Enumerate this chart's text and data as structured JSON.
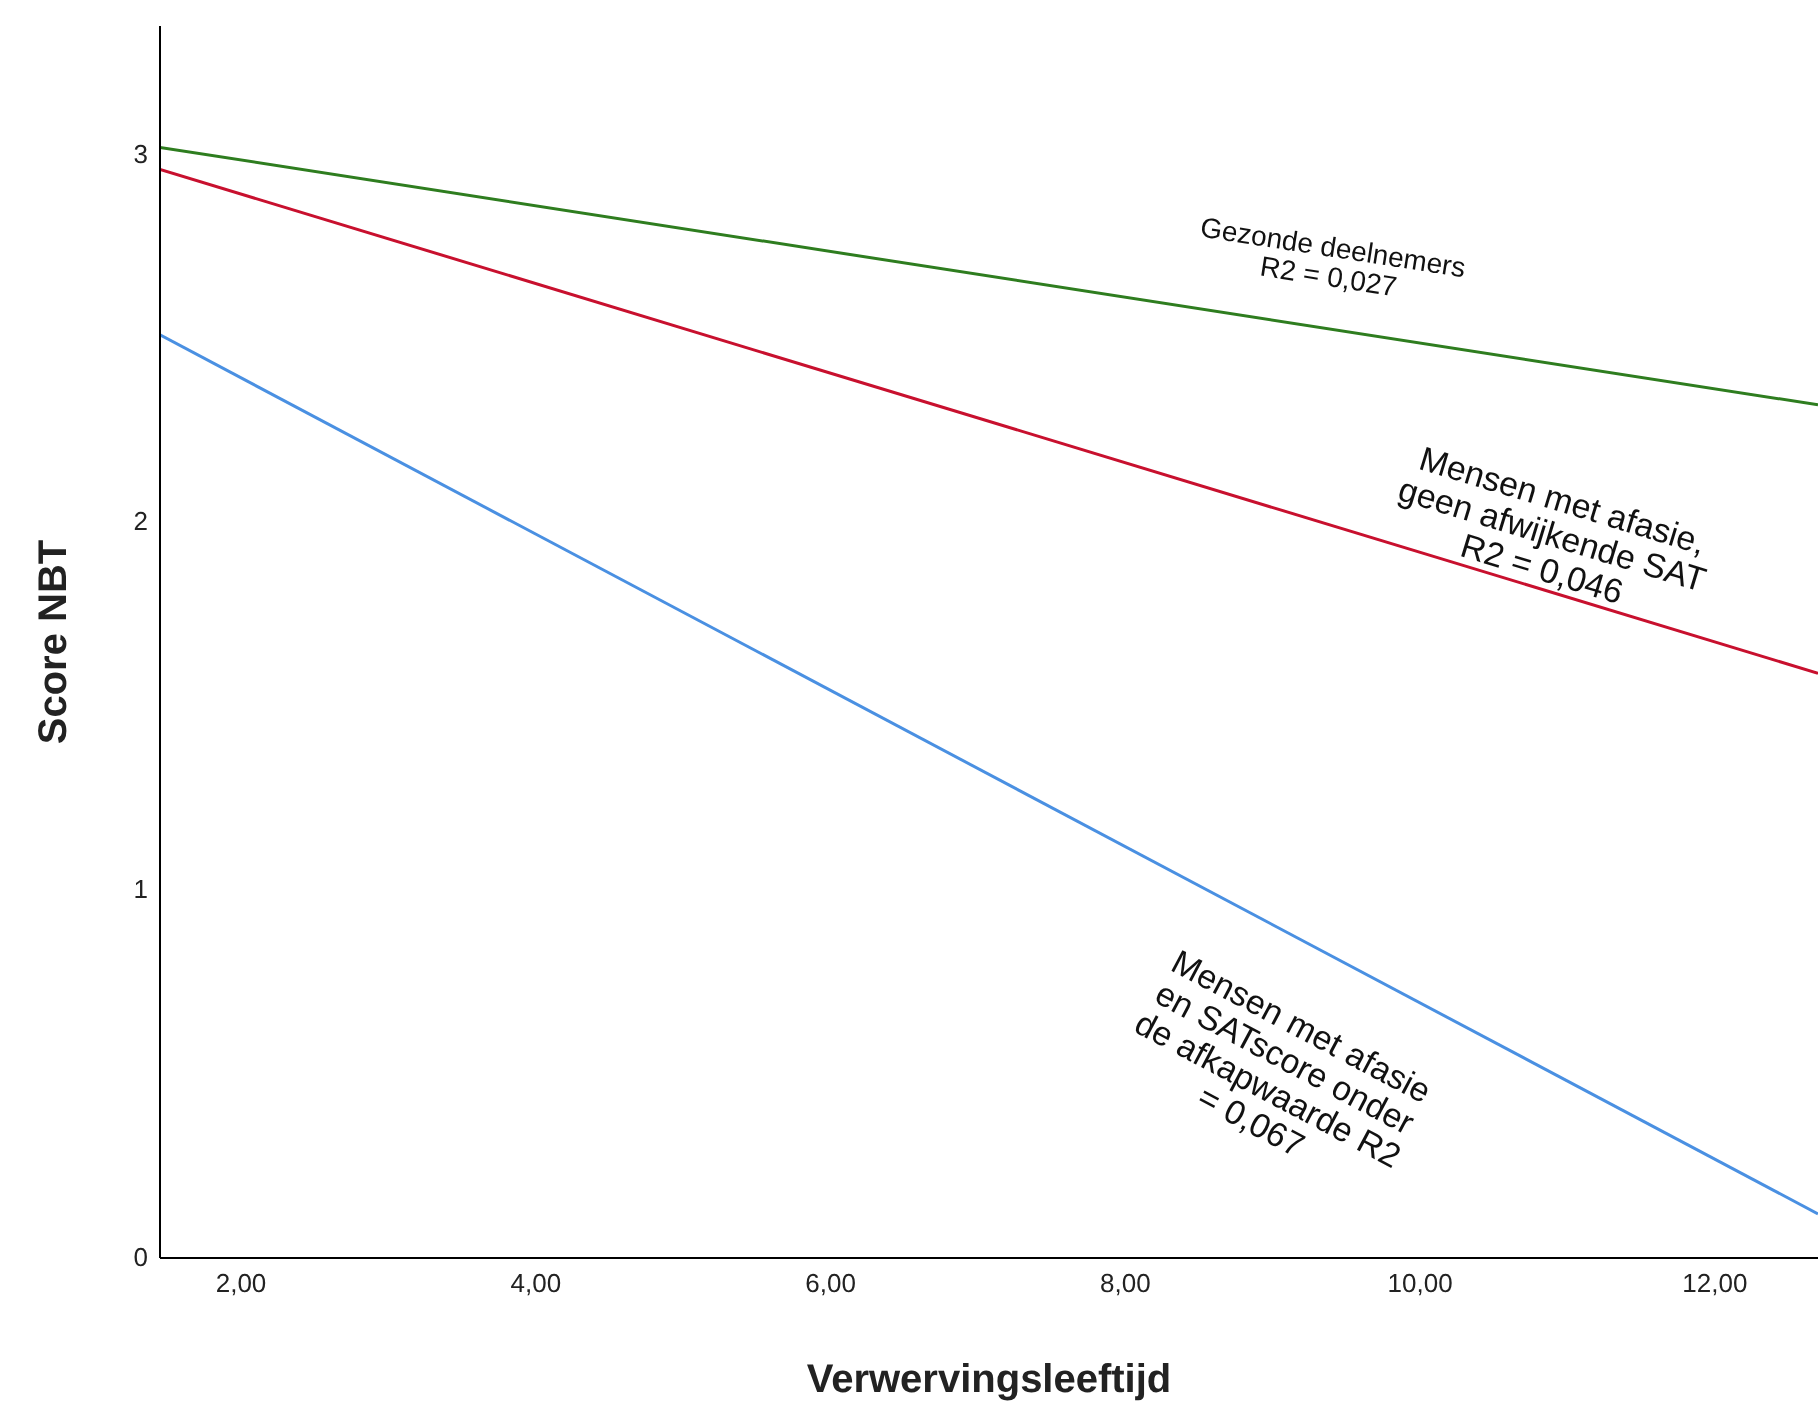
{
  "chart_data": {
    "type": "line",
    "xlabel": "Verwervingsleeftijd",
    "ylabel": "Score NBT",
    "xlim": [
      1.45,
      12.7
    ],
    "ylim": [
      0,
      3.35
    ],
    "xticks": [
      {
        "value": 2,
        "label": "2,00"
      },
      {
        "value": 4,
        "label": "4,00"
      },
      {
        "value": 6,
        "label": "6,00"
      },
      {
        "value": 8,
        "label": "8,00"
      },
      {
        "value": 10,
        "label": "10,00"
      },
      {
        "value": 12,
        "label": "12,00"
      }
    ],
    "yticks": [
      0,
      1,
      2,
      3
    ],
    "marker": "none",
    "line_style": "solid",
    "x": [
      1.45,
      12.7
    ],
    "series": [
      {
        "color": "#2e7d1f",
        "values": [
          3.02,
          2.32
        ]
      },
      {
        "color": "#c8102e",
        "values": [
          2.96,
          1.59
        ]
      },
      {
        "color": "#4a90e2",
        "values": [
          2.51,
          0.12
        ]
      }
    ],
    "annotations": [
      "Gezonde deelnemers\nR2 = 0,027",
      "Mensen met afasie,\ngeen afwijkende SAT\nR2 = 0,046",
      "Mensen met afasie\nen SATscore onder\nde afkapwaarde R2\n= 0,067"
    ]
  }
}
